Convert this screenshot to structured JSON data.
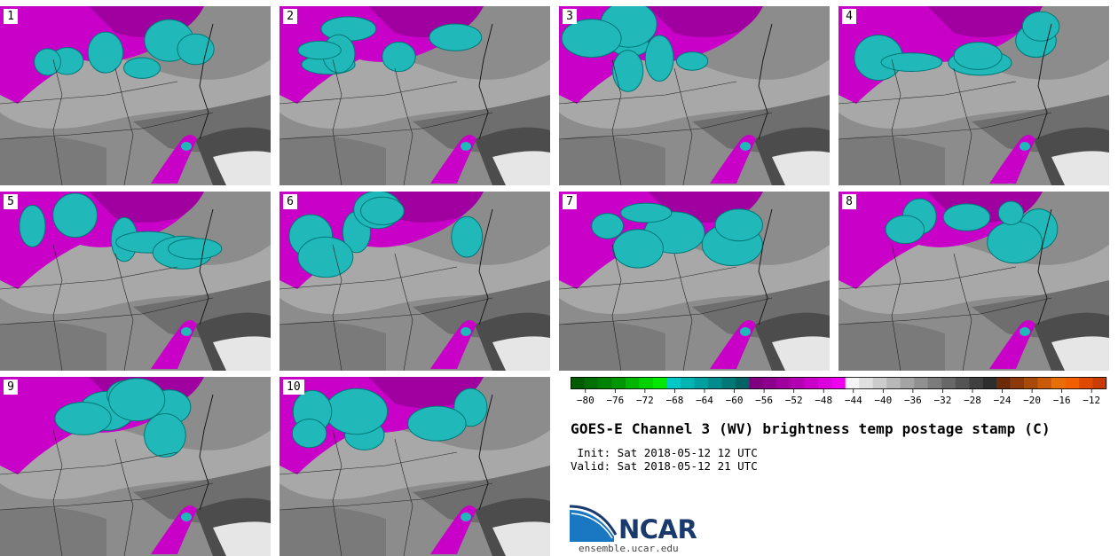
{
  "panels": [
    {
      "label": "1"
    },
    {
      "label": "2"
    },
    {
      "label": "3"
    },
    {
      "label": "4"
    },
    {
      "label": "5"
    },
    {
      "label": "6"
    },
    {
      "label": "7"
    },
    {
      "label": "8"
    },
    {
      "label": "9"
    },
    {
      "label": "10"
    }
  ],
  "colorbar": {
    "tick_labels": [
      "−80",
      "−76",
      "−72",
      "−68",
      "−64",
      "−60",
      "−56",
      "−52",
      "−48",
      "−44",
      "−40",
      "−36",
      "−32",
      "−28",
      "−24",
      "−20",
      "−16",
      "−12"
    ],
    "min": -82,
    "max": -10,
    "step": 2,
    "colors": [
      "#005a00",
      "#006e00",
      "#008200",
      "#009600",
      "#00b400",
      "#00d200",
      "#00e800",
      "#00c8c8",
      "#00b4b4",
      "#00a0a0",
      "#008c8c",
      "#007878",
      "#006464",
      "#800080",
      "#8c008c",
      "#a000a0",
      "#b400b4",
      "#c800c8",
      "#dc00dc",
      "#f000f0",
      "#f5f5f5",
      "#e0e0e0",
      "#cccccc",
      "#b8b8b8",
      "#a4a4a4",
      "#909090",
      "#7c7c7c",
      "#686868",
      "#545454",
      "#404040",
      "#2e2e2e",
      "#6b2a0a",
      "#8a3a0a",
      "#a84a0a",
      "#c85a08",
      "#e86e08",
      "#f06000",
      "#e04a00",
      "#c83c00"
    ]
  },
  "title": "GOES-E Channel 3 (WV) brightness temp postage stamp (C)",
  "init_line": " Init: Sat 2018-05-12 12 UTC",
  "valid_line": "Valid: Sat 2018-05-12 21 UTC",
  "logo": {
    "name": "NCAR",
    "url": "ensemble.ucar.edu"
  },
  "colors": {
    "cold_cloud": "#20b8b8",
    "moist": "#c800c8",
    "dry_dark": "#3a3a3a"
  }
}
